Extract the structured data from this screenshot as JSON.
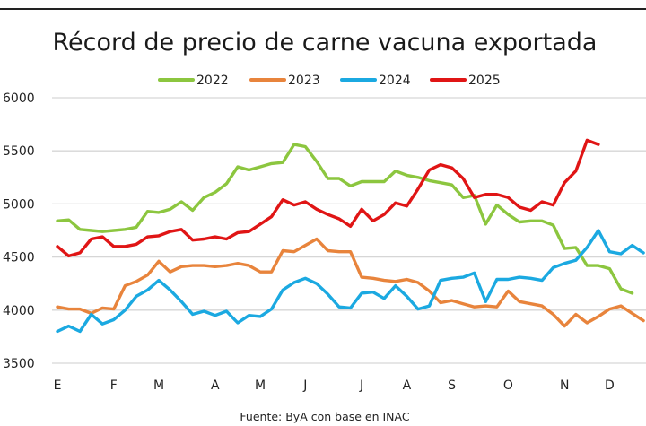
{
  "chart_data": {
    "type": "line",
    "title": "Récord de precio de carne vacuna exportada",
    "source": "Fuente: ByA con base en INAC",
    "xlabel": "",
    "ylabel": "",
    "ylim": [
      3500,
      6000
    ],
    "yticks": [
      "3500",
      "4000",
      "4500",
      "5000",
      "5500",
      "6000"
    ],
    "ytick_values": [
      3500,
      4000,
      4500,
      5000,
      5500,
      6000
    ],
    "x_ticks": [
      "E",
      "F",
      "M",
      "A",
      "M",
      "J",
      "J",
      "A",
      "S",
      "O",
      "N",
      "D"
    ],
    "x_tick_weeks": [
      0,
      5,
      9,
      14,
      18,
      22,
      27,
      31,
      35,
      40,
      45,
      49
    ],
    "x_unit": "week of year",
    "grid": true,
    "legend_position": "top-center",
    "series": [
      {
        "name": "2022",
        "color": "#8CC63F",
        "values": [
          4840,
          4850,
          4760,
          4750,
          4740,
          4750,
          4760,
          4780,
          4930,
          4920,
          4950,
          5020,
          4940,
          5060,
          5110,
          5190,
          5350,
          5320,
          5350,
          5380,
          5390,
          5560,
          5540,
          5400,
          5240,
          5240,
          5170,
          5210,
          5210,
          5210,
          5310,
          5270,
          5250,
          5220,
          5200,
          5180,
          5060,
          5080,
          4810,
          4990,
          4900,
          4830,
          4840,
          4840,
          4800,
          4580,
          4590,
          4420,
          4420,
          4390,
          4200,
          4160
        ]
      },
      {
        "name": "2023",
        "color": "#E8843C",
        "values": [
          4030,
          4010,
          4010,
          3970,
          4020,
          4010,
          4230,
          4270,
          4330,
          4460,
          4360,
          4410,
          4420,
          4420,
          4410,
          4420,
          4440,
          4420,
          4360,
          4360,
          4560,
          4550,
          4610,
          4670,
          4560,
          4550,
          4550,
          4310,
          4300,
          4280,
          4270,
          4290,
          4260,
          4180,
          4070,
          4090,
          4060,
          4030,
          4040,
          4030,
          4180,
          4080,
          4060,
          4040,
          3960,
          3850,
          3960,
          3880,
          3940,
          4010,
          4040,
          3970,
          3900
        ]
      },
      {
        "name": "2024",
        "color": "#1BA9E1",
        "values": [
          3800,
          3850,
          3800,
          3960,
          3870,
          3910,
          4000,
          4130,
          4190,
          4280,
          4190,
          4080,
          3960,
          3990,
          3950,
          3990,
          3880,
          3950,
          3940,
          4010,
          4190,
          4260,
          4300,
          4250,
          4150,
          4030,
          4020,
          4160,
          4170,
          4110,
          4230,
          4130,
          4010,
          4040,
          4280,
          4300,
          4310,
          4350,
          4080,
          4290,
          4290,
          4310,
          4300,
          4280,
          4400,
          4440,
          4470,
          4590,
          4750,
          4550,
          4530,
          4610,
          4540
        ]
      },
      {
        "name": "2025",
        "color": "#E01515",
        "values": [
          4600,
          4510,
          4540,
          4670,
          4690,
          4600,
          4600,
          4620,
          4690,
          4700,
          4740,
          4760,
          4660,
          4670,
          4690,
          4670,
          4730,
          4740,
          4810,
          4880,
          5040,
          4990,
          5020,
          4950,
          4900,
          4860,
          4790,
          4950,
          4840,
          4900,
          5010,
          4980,
          5140,
          5320,
          5370,
          5340,
          5240,
          5060,
          5090,
          5090,
          5060,
          4970,
          4940,
          5020,
          4990,
          5200,
          5310,
          5600,
          5560
        ]
      }
    ]
  }
}
